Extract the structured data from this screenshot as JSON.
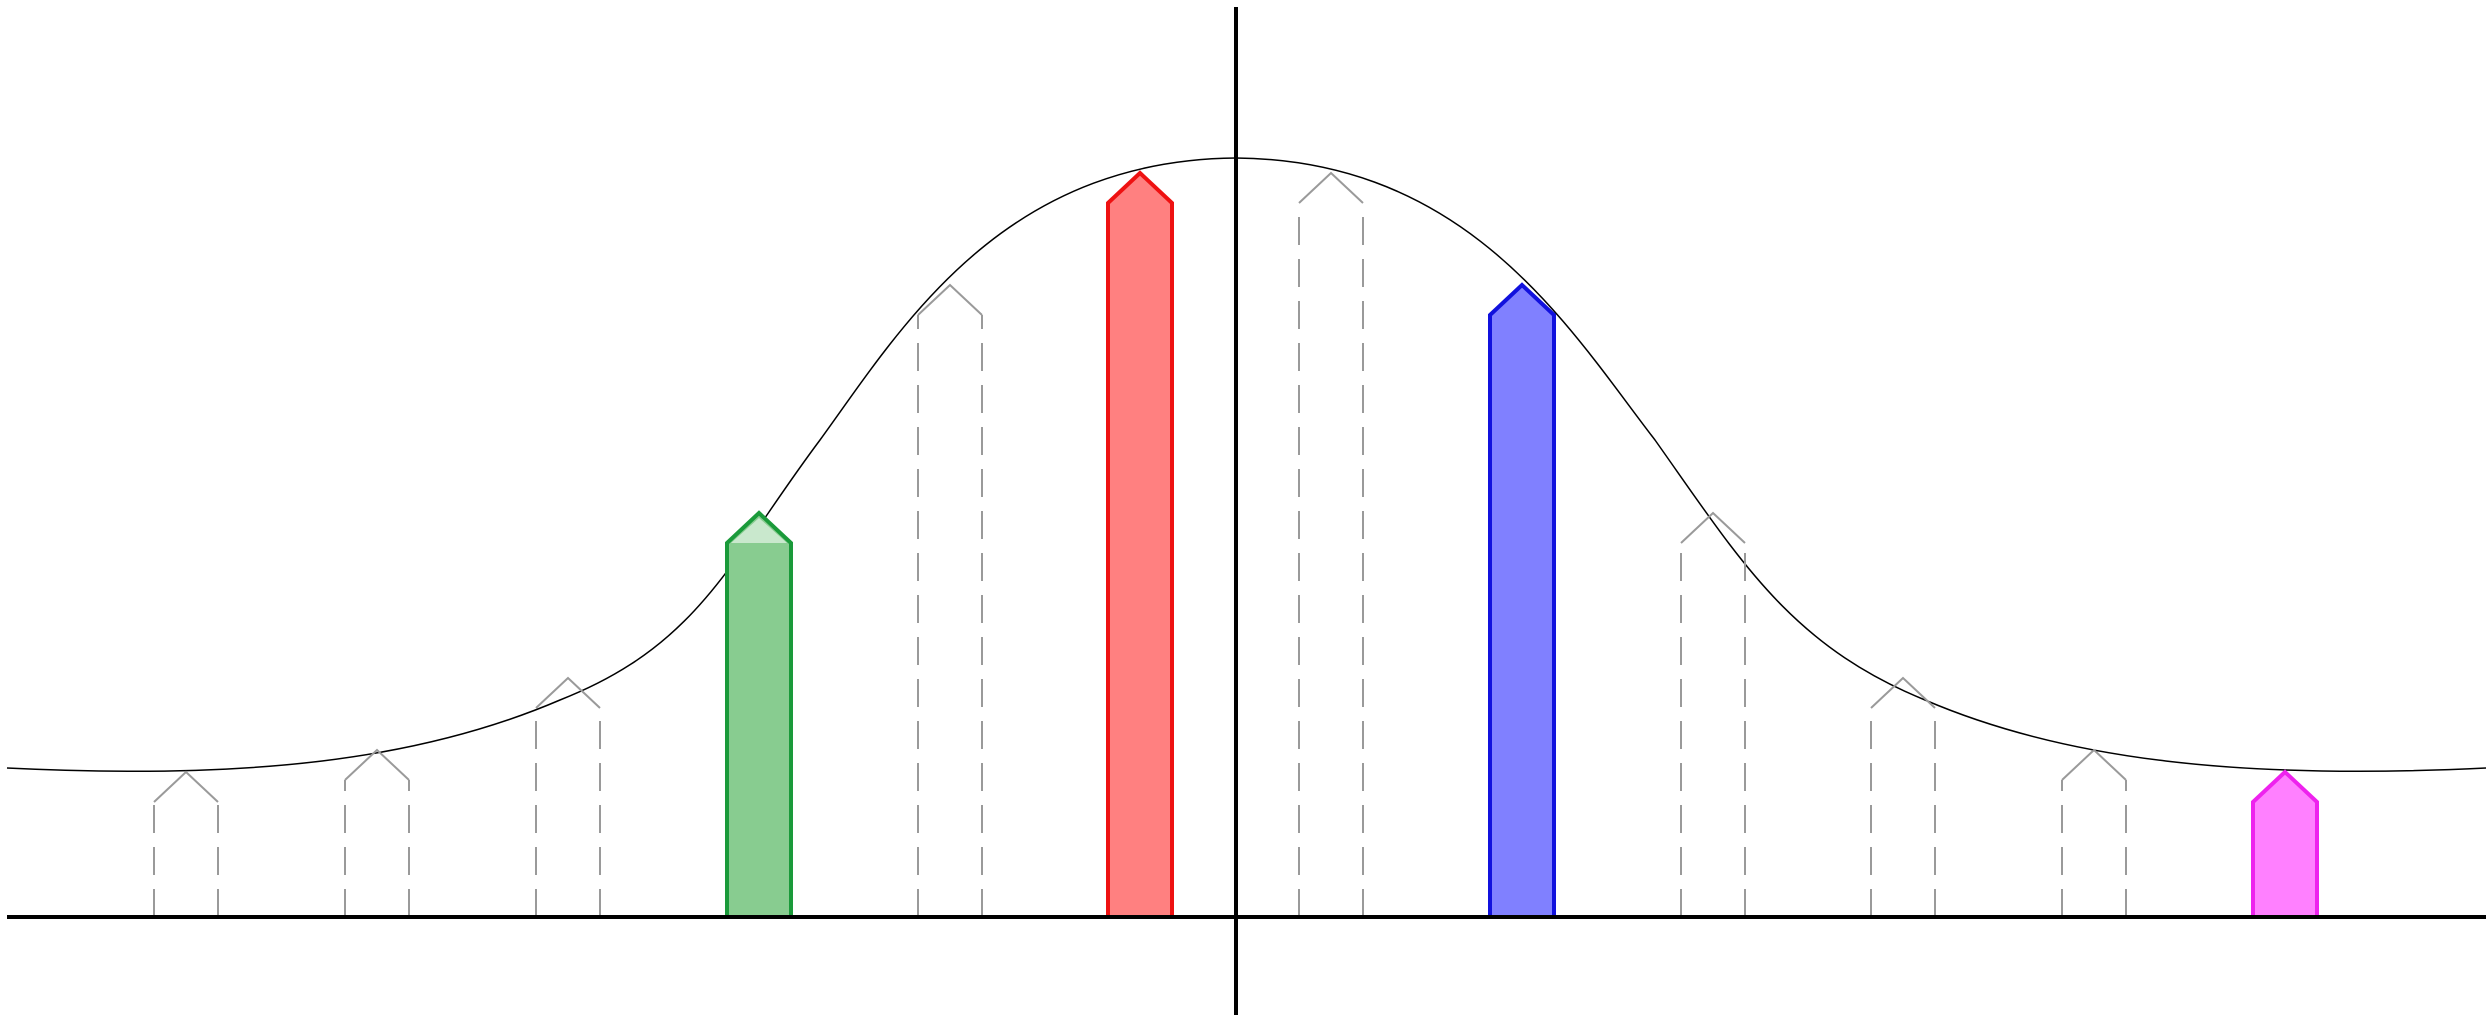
{
  "diagram": {
    "description_type": "bell-curve-with-arrow-bars",
    "colors": {
      "curve": "#000000",
      "axis": "#000000",
      "ghost": "#9a9a9a",
      "green_fill": "#88cc90",
      "green_stroke": "#1a9a3a",
      "red_fill": "#ff8080",
      "red_stroke": "#ee1111",
      "blue_fill": "#8080ff",
      "blue_stroke": "#1111dd",
      "magenta_fill": "#ff80ff",
      "magenta_stroke": "#ee22ee",
      "background": "#ffffff"
    },
    "bars": [
      {
        "name": "ghost-bar-1",
        "style": "ghost"
      },
      {
        "name": "ghost-bar-2",
        "style": "ghost"
      },
      {
        "name": "ghost-bar-3",
        "style": "ghost"
      },
      {
        "name": "green-bar",
        "style": "green"
      },
      {
        "name": "ghost-bar-4",
        "style": "ghost"
      },
      {
        "name": "red-bar",
        "style": "red"
      },
      {
        "name": "ghost-bar-5",
        "style": "ghost"
      },
      {
        "name": "blue-bar",
        "style": "blue"
      },
      {
        "name": "ghost-bar-6",
        "style": "ghost"
      },
      {
        "name": "ghost-bar-7",
        "style": "ghost"
      },
      {
        "name": "ghost-bar-8",
        "style": "ghost"
      },
      {
        "name": "magenta-bar",
        "style": "magenta"
      }
    ]
  }
}
